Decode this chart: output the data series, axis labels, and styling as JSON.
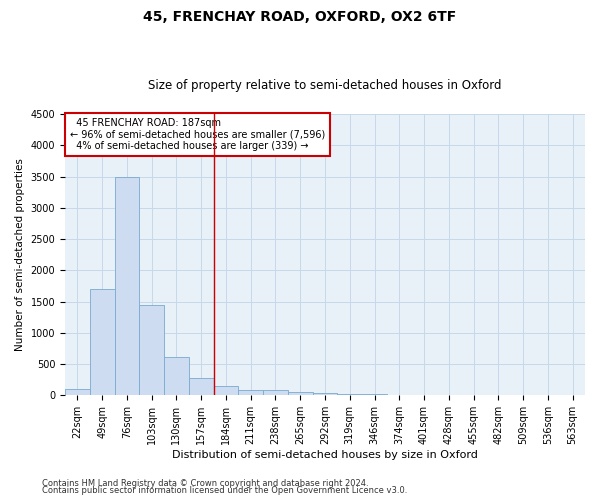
{
  "title1": "45, FRENCHAY ROAD, OXFORD, OX2 6TF",
  "title2": "Size of property relative to semi-detached houses in Oxford",
  "xlabel": "Distribution of semi-detached houses by size in Oxford",
  "ylabel": "Number of semi-detached properties",
  "bar_color": "#cddcf0",
  "bar_edge_color": "#7aaad0",
  "categories": [
    "22sqm",
    "49sqm",
    "76sqm",
    "103sqm",
    "130sqm",
    "157sqm",
    "184sqm",
    "211sqm",
    "238sqm",
    "265sqm",
    "292sqm",
    "319sqm",
    "346sqm",
    "374sqm",
    "401sqm",
    "428sqm",
    "455sqm",
    "482sqm",
    "509sqm",
    "536sqm",
    "563sqm"
  ],
  "values": [
    100,
    1700,
    3500,
    1450,
    620,
    270,
    150,
    90,
    80,
    55,
    40,
    25,
    20,
    5,
    0,
    0,
    0,
    0,
    0,
    0,
    0
  ],
  "property_line_idx": 6,
  "annotation_label": "45 FRENCHAY ROAD: 187sqm",
  "pct_smaller": 96,
  "n_smaller": 7596,
  "pct_larger": 4,
  "n_larger": 339,
  "vline_color": "#cc0000",
  "box_edge_color": "#cc0000",
  "ylim": [
    0,
    4500
  ],
  "yticks": [
    0,
    500,
    1000,
    1500,
    2000,
    2500,
    3000,
    3500,
    4000,
    4500
  ],
  "grid_color": "#c8d8eb",
  "bg_color": "#e8f0f8",
  "title1_fontsize": 10,
  "title2_fontsize": 8.5,
  "tick_fontsize": 7,
  "ylabel_fontsize": 7.5,
  "xlabel_fontsize": 8,
  "annot_fontsize": 7,
  "footer_fontsize": 6,
  "footer1": "Contains HM Land Registry data © Crown copyright and database right 2024.",
  "footer2": "Contains public sector information licensed under the Open Government Licence v3.0."
}
